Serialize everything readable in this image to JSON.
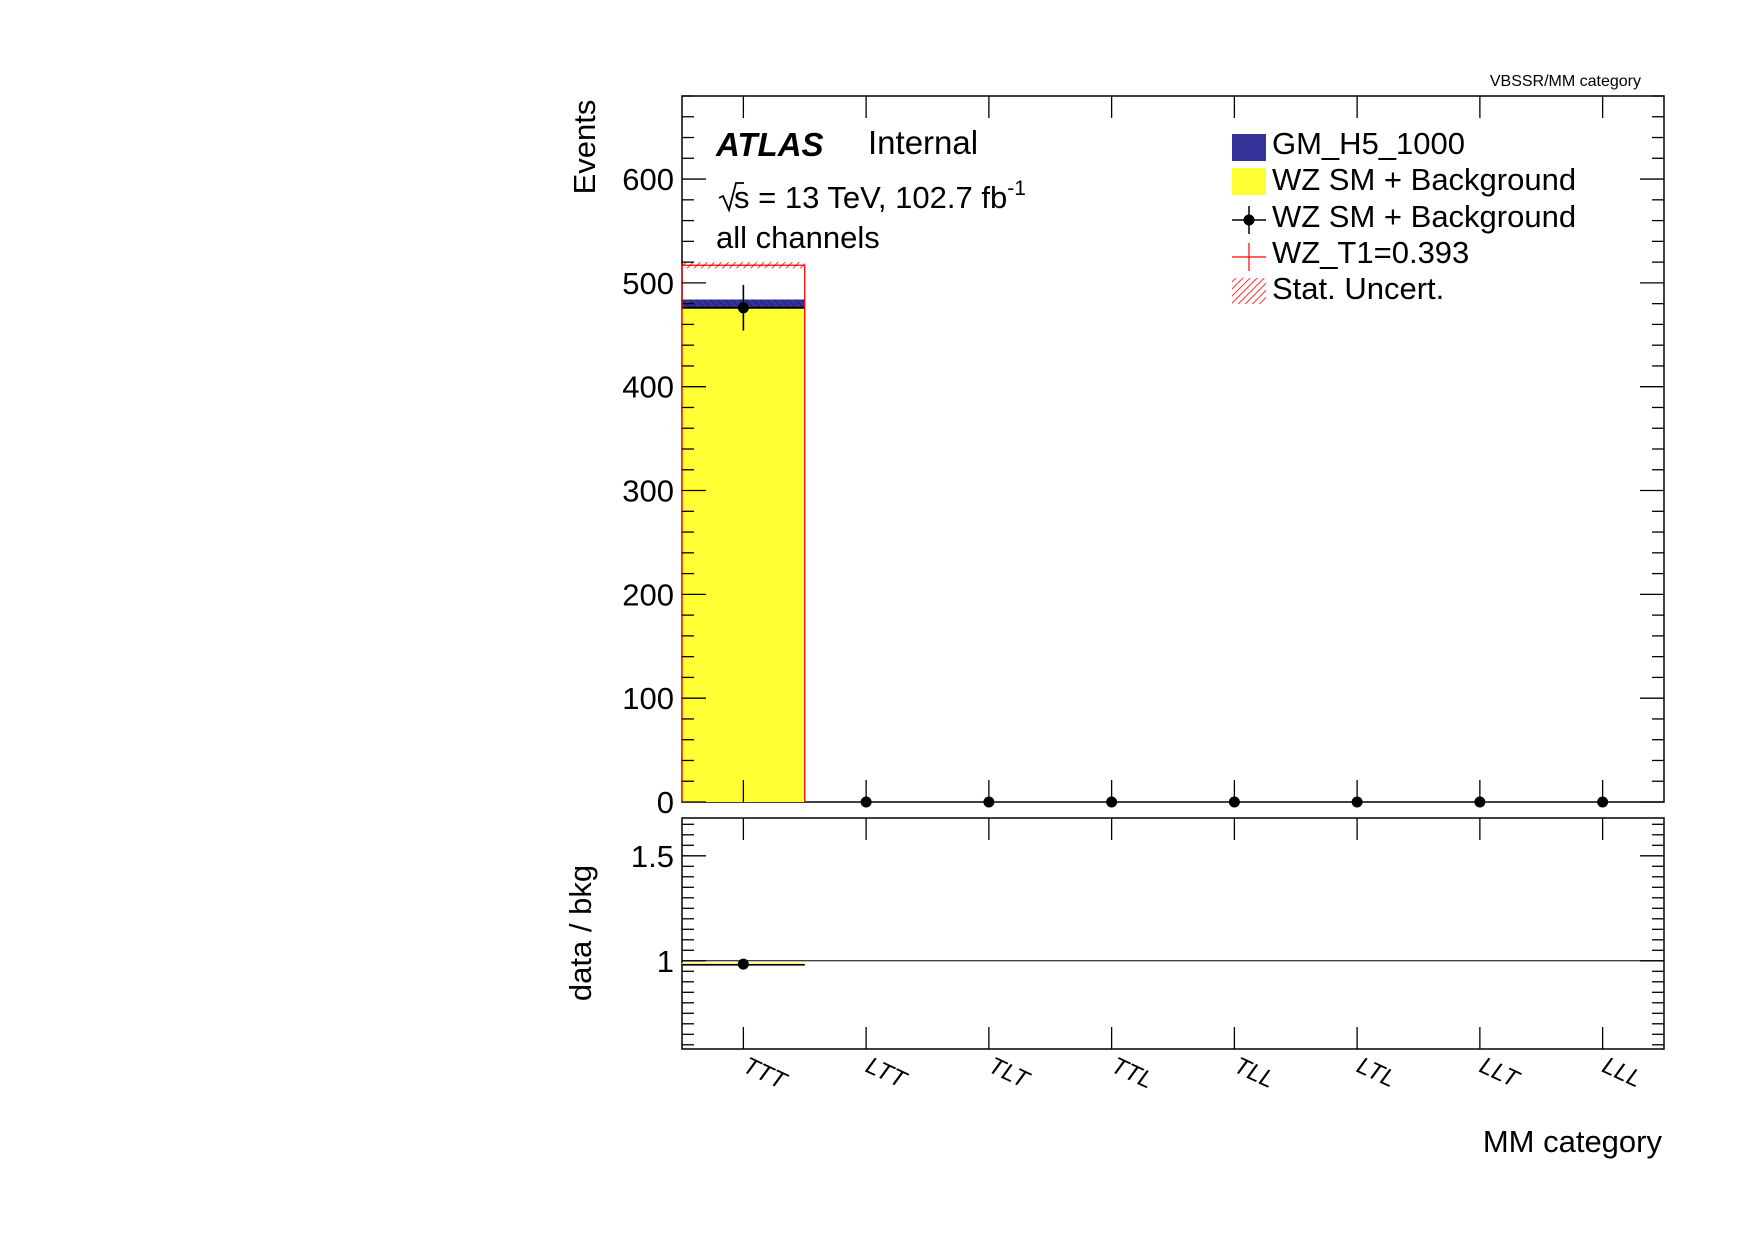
{
  "header": {
    "corner_label": "VBSSR/MM category"
  },
  "atlas": {
    "experiment": "ATLAS",
    "status": "Internal",
    "energy_lumi_prefix": "s = 13 TeV, 102.7 fb",
    "lumi_exponent": "-1",
    "channels": "all channels"
  },
  "legend": {
    "entries": [
      {
        "key": "signal",
        "label": "GM_H5_1000",
        "style": "fill",
        "color": "#333399"
      },
      {
        "key": "bkg",
        "label": "WZ SM + Background",
        "style": "fill",
        "color": "#ffff33"
      },
      {
        "key": "data",
        "label": "WZ SM + Background",
        "style": "marker",
        "color": "#000000"
      },
      {
        "key": "variation",
        "label": "WZ_T1=0.393",
        "style": "line",
        "color": "#ff0000"
      },
      {
        "key": "unc",
        "label": "Stat. Uncert.",
        "style": "hatch",
        "color": "#ff3333"
      }
    ]
  },
  "chart_data": [
    {
      "type": "bar",
      "panel": "main",
      "ylabel": "Events",
      "xlabel": "",
      "ylim": [
        0,
        680
      ],
      "y_ticks": [
        0,
        100,
        200,
        300,
        400,
        500,
        600
      ],
      "categories": [
        "TTT",
        "LTT",
        "TLT",
        "TTL",
        "TLL",
        "LTL",
        "LLT",
        "LLL"
      ],
      "stacked": true,
      "series": [
        {
          "name": "WZ SM + Background",
          "kind": "stack",
          "color": "#ffff33",
          "values": [
            476,
            0,
            0,
            0,
            0,
            0,
            0,
            0
          ]
        },
        {
          "name": "GM_H5_1000",
          "kind": "stack",
          "color": "#333399",
          "values": [
            8,
            0,
            0,
            0,
            0,
            0,
            0,
            0
          ]
        },
        {
          "name": "WZ SM + Background",
          "kind": "points",
          "color": "#000000",
          "values": [
            476,
            0,
            0,
            0,
            0,
            0,
            0,
            0
          ],
          "errors": [
            22,
            0,
            0,
            0,
            0,
            0,
            0,
            0
          ]
        },
        {
          "name": "WZ_T1=0.393",
          "kind": "step",
          "color": "#ff0000",
          "values": [
            517,
            0,
            0,
            0,
            0,
            0,
            0,
            0
          ]
        }
      ],
      "stat_uncertainty": {
        "name": "Stat. Uncert.",
        "on_total": [
          2.5,
          0,
          0,
          0,
          0,
          0,
          0,
          0
        ],
        "on_variation": [
          3,
          0,
          0,
          0,
          0,
          0,
          0,
          0
        ]
      }
    },
    {
      "type": "scatter",
      "panel": "ratio",
      "ylabel": "data / bkg",
      "xlabel": "MM category",
      "ylim": [
        0.58,
        1.68
      ],
      "y_ticks": [
        1,
        1.5
      ],
      "y_tick_labels": [
        "1",
        "1.5"
      ],
      "reference_line": 1,
      "categories": [
        "TTT",
        "LTT",
        "TLT",
        "TTL",
        "TLL",
        "LTL",
        "LLT",
        "LLL"
      ],
      "series": [
        {
          "name": "",
          "values": [
            0.984,
            null,
            null,
            null,
            null,
            null,
            null,
            null
          ]
        }
      ],
      "ratio_band": {
        "low": [
          0.981,
          null,
          null,
          null,
          null,
          null,
          null,
          null
        ],
        "high": [
          0.99,
          null,
          null,
          null,
          null,
          null,
          null,
          null
        ],
        "color": "#ffff33"
      }
    }
  ]
}
